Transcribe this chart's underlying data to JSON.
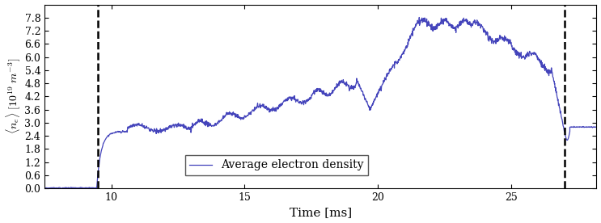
{
  "title": "",
  "xlabel": "Time [ms]",
  "ylabel": "< n_e > [10^{19} m^{-3}]",
  "line_color": "#4444bb",
  "line_width": 0.9,
  "xlim": [
    7.5,
    28.2
  ],
  "ylim": [
    0.0,
    8.4
  ],
  "yticks": [
    0.0,
    0.6,
    1.2,
    1.8,
    2.4,
    3.0,
    3.6,
    4.2,
    4.8,
    5.4,
    6.0,
    6.6,
    7.2,
    7.8
  ],
  "xticks": [
    10,
    15,
    20,
    25
  ],
  "dashed_lines": [
    9.5,
    27.0
  ],
  "dashed_color": "black",
  "legend_label": "Average electron density",
  "background_color": "#ffffff"
}
